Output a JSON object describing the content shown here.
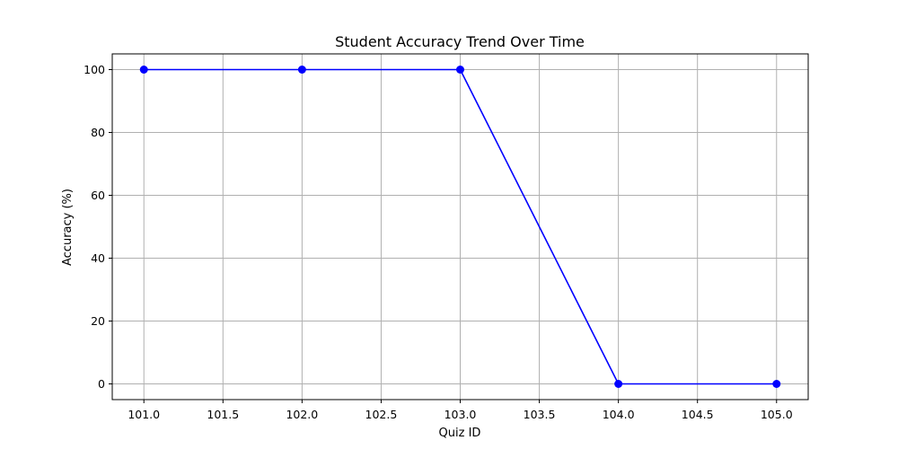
{
  "chart_data": {
    "type": "line",
    "title": "Student Accuracy Trend Over Time",
    "xlabel": "Quiz ID",
    "ylabel": "Accuracy (%)",
    "x": [
      101.0,
      102.0,
      103.0,
      104.0,
      105.0
    ],
    "series": [
      {
        "values": [
          100,
          100,
          100,
          0,
          0
        ],
        "color": "#0000ff",
        "marker": "circle"
      }
    ],
    "xlim": [
      100.8,
      105.2
    ],
    "ylim": [
      -5,
      105
    ],
    "xticks": [
      "101.0",
      "101.5",
      "102.0",
      "102.5",
      "103.0",
      "103.5",
      "104.0",
      "104.5",
      "105.0"
    ],
    "yticks": [
      "0",
      "20",
      "40",
      "60",
      "80",
      "100"
    ],
    "grid": true,
    "legend": "none"
  }
}
